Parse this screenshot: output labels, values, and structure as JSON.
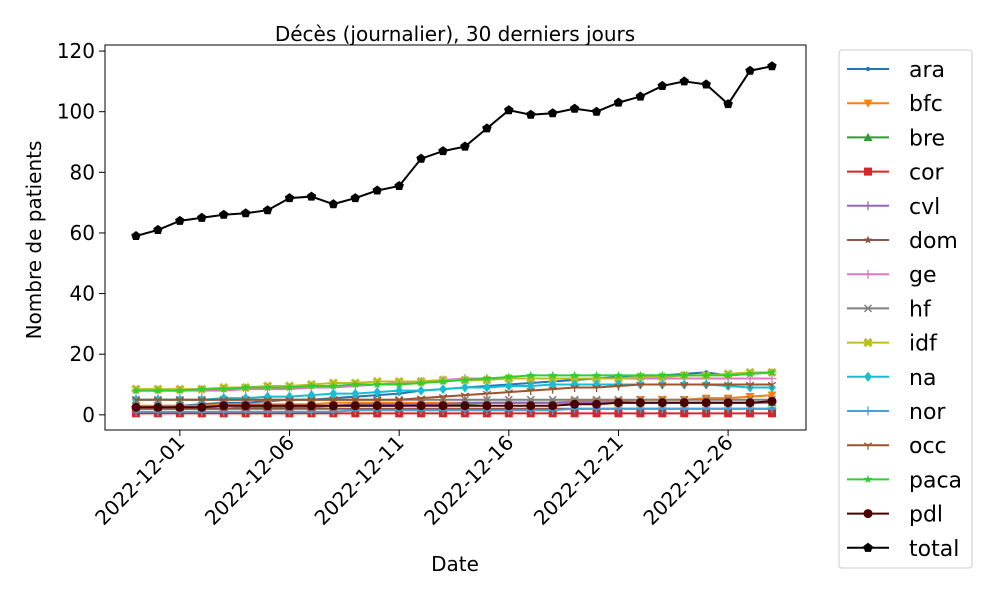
{
  "chart_data": {
    "type": "line",
    "title": "Décès (journalier), 30 derniers jours",
    "xlabel": "Date",
    "ylabel": "Nombre de patients",
    "x": [
      "2022-11-29",
      "2022-11-30",
      "2022-12-01",
      "2022-12-02",
      "2022-12-03",
      "2022-12-04",
      "2022-12-05",
      "2022-12-06",
      "2022-12-07",
      "2022-12-08",
      "2022-12-09",
      "2022-12-10",
      "2022-12-11",
      "2022-12-12",
      "2022-12-13",
      "2022-12-14",
      "2022-12-15",
      "2022-12-16",
      "2022-12-17",
      "2022-12-18",
      "2022-12-19",
      "2022-12-20",
      "2022-12-21",
      "2022-12-22",
      "2022-12-23",
      "2022-12-24",
      "2022-12-25",
      "2022-12-26",
      "2022-12-27",
      "2022-12-28"
    ],
    "xticks": [
      "2022-12-01",
      "2022-12-06",
      "2022-12-11",
      "2022-12-16",
      "2022-12-21",
      "2022-12-26"
    ],
    "ylim": [
      -5,
      122
    ],
    "yticks": [
      0,
      20,
      40,
      60,
      80,
      100,
      120
    ],
    "grid": false,
    "legend_position": "outside-right",
    "series": [
      {
        "name": "ara",
        "color": "#1f77b4",
        "marker": "point",
        "values": [
          2.5,
          3,
          3,
          3.5,
          4,
          4,
          4.5,
          5,
          5,
          5.5,
          6,
          6.5,
          7,
          8,
          8.5,
          9,
          9.5,
          10,
          10.5,
          11,
          11.5,
          12,
          12.5,
          13,
          13,
          13.5,
          14,
          13,
          13.5,
          14
        ]
      },
      {
        "name": "bfc",
        "color": "#ff7f0e",
        "marker": "triangle_down",
        "values": [
          3,
          3,
          3,
          3,
          3.5,
          3.5,
          3.5,
          3.5,
          3.5,
          4,
          4,
          4,
          4,
          4,
          4,
          4,
          4,
          4,
          4,
          4,
          4.5,
          4.5,
          4.5,
          5,
          5,
          5,
          5.5,
          5.5,
          6,
          6.5
        ]
      },
      {
        "name": "bre",
        "color": "#2ca02c",
        "marker": "triangle_up",
        "values": [
          2,
          2,
          2,
          2,
          2,
          2.5,
          2.5,
          2.5,
          2.5,
          3,
          3,
          3,
          3,
          3.5,
          3.5,
          3.5,
          4,
          4,
          4,
          4,
          4,
          4,
          4,
          4,
          4,
          4,
          4,
          4,
          4,
          4
        ]
      },
      {
        "name": "cor",
        "color": "#d62728",
        "marker": "square",
        "values": [
          0.5,
          0.5,
          0.5,
          0.5,
          0.5,
          0.5,
          0.5,
          0.5,
          0.5,
          0.5,
          0.5,
          0.5,
          0.5,
          0.5,
          0.5,
          0.5,
          0.5,
          0.5,
          0.5,
          0.5,
          0.5,
          0.5,
          0.5,
          0.5,
          0.5,
          0.5,
          0.5,
          0.5,
          0.5,
          0.5
        ]
      },
      {
        "name": "cvl",
        "color": "#9467bd",
        "marker": "plus",
        "values": [
          2.5,
          2.5,
          2.5,
          2.5,
          3,
          3,
          3,
          3,
          3,
          3,
          3.5,
          3.5,
          3.5,
          3.5,
          3.5,
          4,
          4,
          4,
          4,
          4,
          4,
          4,
          4,
          4,
          4,
          4,
          4,
          4,
          4,
          4
        ]
      },
      {
        "name": "dom",
        "color": "#8c564b",
        "marker": "star",
        "values": [
          2,
          2,
          2,
          2,
          2,
          2,
          2,
          2,
          2,
          2,
          2,
          2,
          2,
          2,
          2,
          2,
          2,
          2,
          2,
          2,
          2,
          2,
          2,
          2,
          2,
          2,
          2,
          2,
          2,
          2
        ]
      },
      {
        "name": "ge",
        "color": "#e377c2",
        "marker": "plus",
        "values": [
          8,
          8,
          8,
          8,
          8,
          8.5,
          8.5,
          8.5,
          9,
          9,
          9.5,
          10,
          10.5,
          11,
          11.5,
          12,
          12,
          12,
          12,
          12,
          12,
          12,
          12,
          12,
          12,
          12,
          12,
          12,
          12,
          12
        ]
      },
      {
        "name": "hf",
        "color": "#7f7f7f",
        "marker": "x",
        "values": [
          5,
          5,
          5,
          5,
          5,
          5,
          5,
          5,
          5,
          5,
          5,
          5,
          5,
          5,
          5,
          5,
          5,
          5,
          5,
          5,
          5,
          5,
          5,
          5,
          5,
          5,
          5,
          5,
          5,
          5
        ]
      },
      {
        "name": "idf",
        "color": "#bcbd22",
        "marker": "x_bold",
        "values": [
          8.5,
          8.5,
          8.5,
          8.5,
          9,
          9,
          9.5,
          9.5,
          10,
          10.5,
          10.5,
          11,
          11,
          11,
          11.5,
          11.5,
          11.5,
          12,
          12,
          12,
          12,
          12,
          12,
          12.5,
          12.5,
          13,
          13,
          13.5,
          14,
          14
        ]
      },
      {
        "name": "na",
        "color": "#17becf",
        "marker": "diamond",
        "values": [
          5,
          5,
          5,
          5,
          5.5,
          5.5,
          6,
          6,
          6.5,
          7,
          7,
          7.5,
          8,
          8,
          8.5,
          9,
          9,
          9.5,
          9.5,
          10,
          10,
          10,
          10,
          10,
          10,
          10,
          10,
          9.5,
          9,
          9
        ]
      },
      {
        "name": "nor",
        "color": "#4a9fd6",
        "marker": "plus",
        "values": [
          1,
          1,
          1,
          1,
          1,
          1,
          1,
          1,
          1,
          1,
          1.5,
          1.5,
          1.5,
          1.5,
          1.5,
          1.5,
          1.5,
          1.5,
          1.5,
          1.5,
          2,
          2,
          2,
          2,
          2,
          2,
          2,
          2,
          2,
          2
        ]
      },
      {
        "name": "occ",
        "color": "#a0522d",
        "marker": "tri",
        "values": [
          5,
          5,
          5,
          5,
          5,
          5,
          5,
          5,
          5,
          5,
          5,
          5,
          5,
          5.5,
          6,
          6.5,
          7,
          7.5,
          8,
          8.5,
          9,
          9,
          9.5,
          10,
          10,
          10,
          10,
          10,
          10,
          10
        ]
      },
      {
        "name": "paca",
        "color": "#32cd32",
        "marker": "star",
        "values": [
          8,
          8,
          8,
          8.5,
          8.5,
          9,
          9,
          9,
          9.5,
          9.5,
          10,
          10,
          10,
          10.5,
          11,
          11.5,
          12,
          12.5,
          13,
          13,
          13,
          13,
          13,
          13,
          13,
          13,
          13,
          13,
          13.5,
          14
        ]
      },
      {
        "name": "pdl",
        "color": "#4a0000",
        "marker": "circle",
        "values": [
          2.5,
          2.5,
          2.5,
          2.5,
          3,
          3,
          3,
          3,
          3,
          3,
          3,
          3,
          3,
          3,
          3,
          3,
          3,
          3,
          3,
          3,
          3.5,
          3.5,
          4,
          4,
          4,
          4,
          4,
          4,
          4,
          4.5
        ]
      },
      {
        "name": "total",
        "color": "#000000",
        "marker": "pentagon",
        "values": [
          59,
          61,
          64,
          65,
          66,
          66.5,
          67.5,
          71.5,
          72,
          69.5,
          71.5,
          74,
          75.5,
          84.5,
          87,
          88.5,
          94.5,
          100.5,
          99,
          99.5,
          101,
          100,
          103,
          105,
          108.5,
          110,
          109,
          102.5,
          113.5,
          115
        ]
      }
    ]
  }
}
